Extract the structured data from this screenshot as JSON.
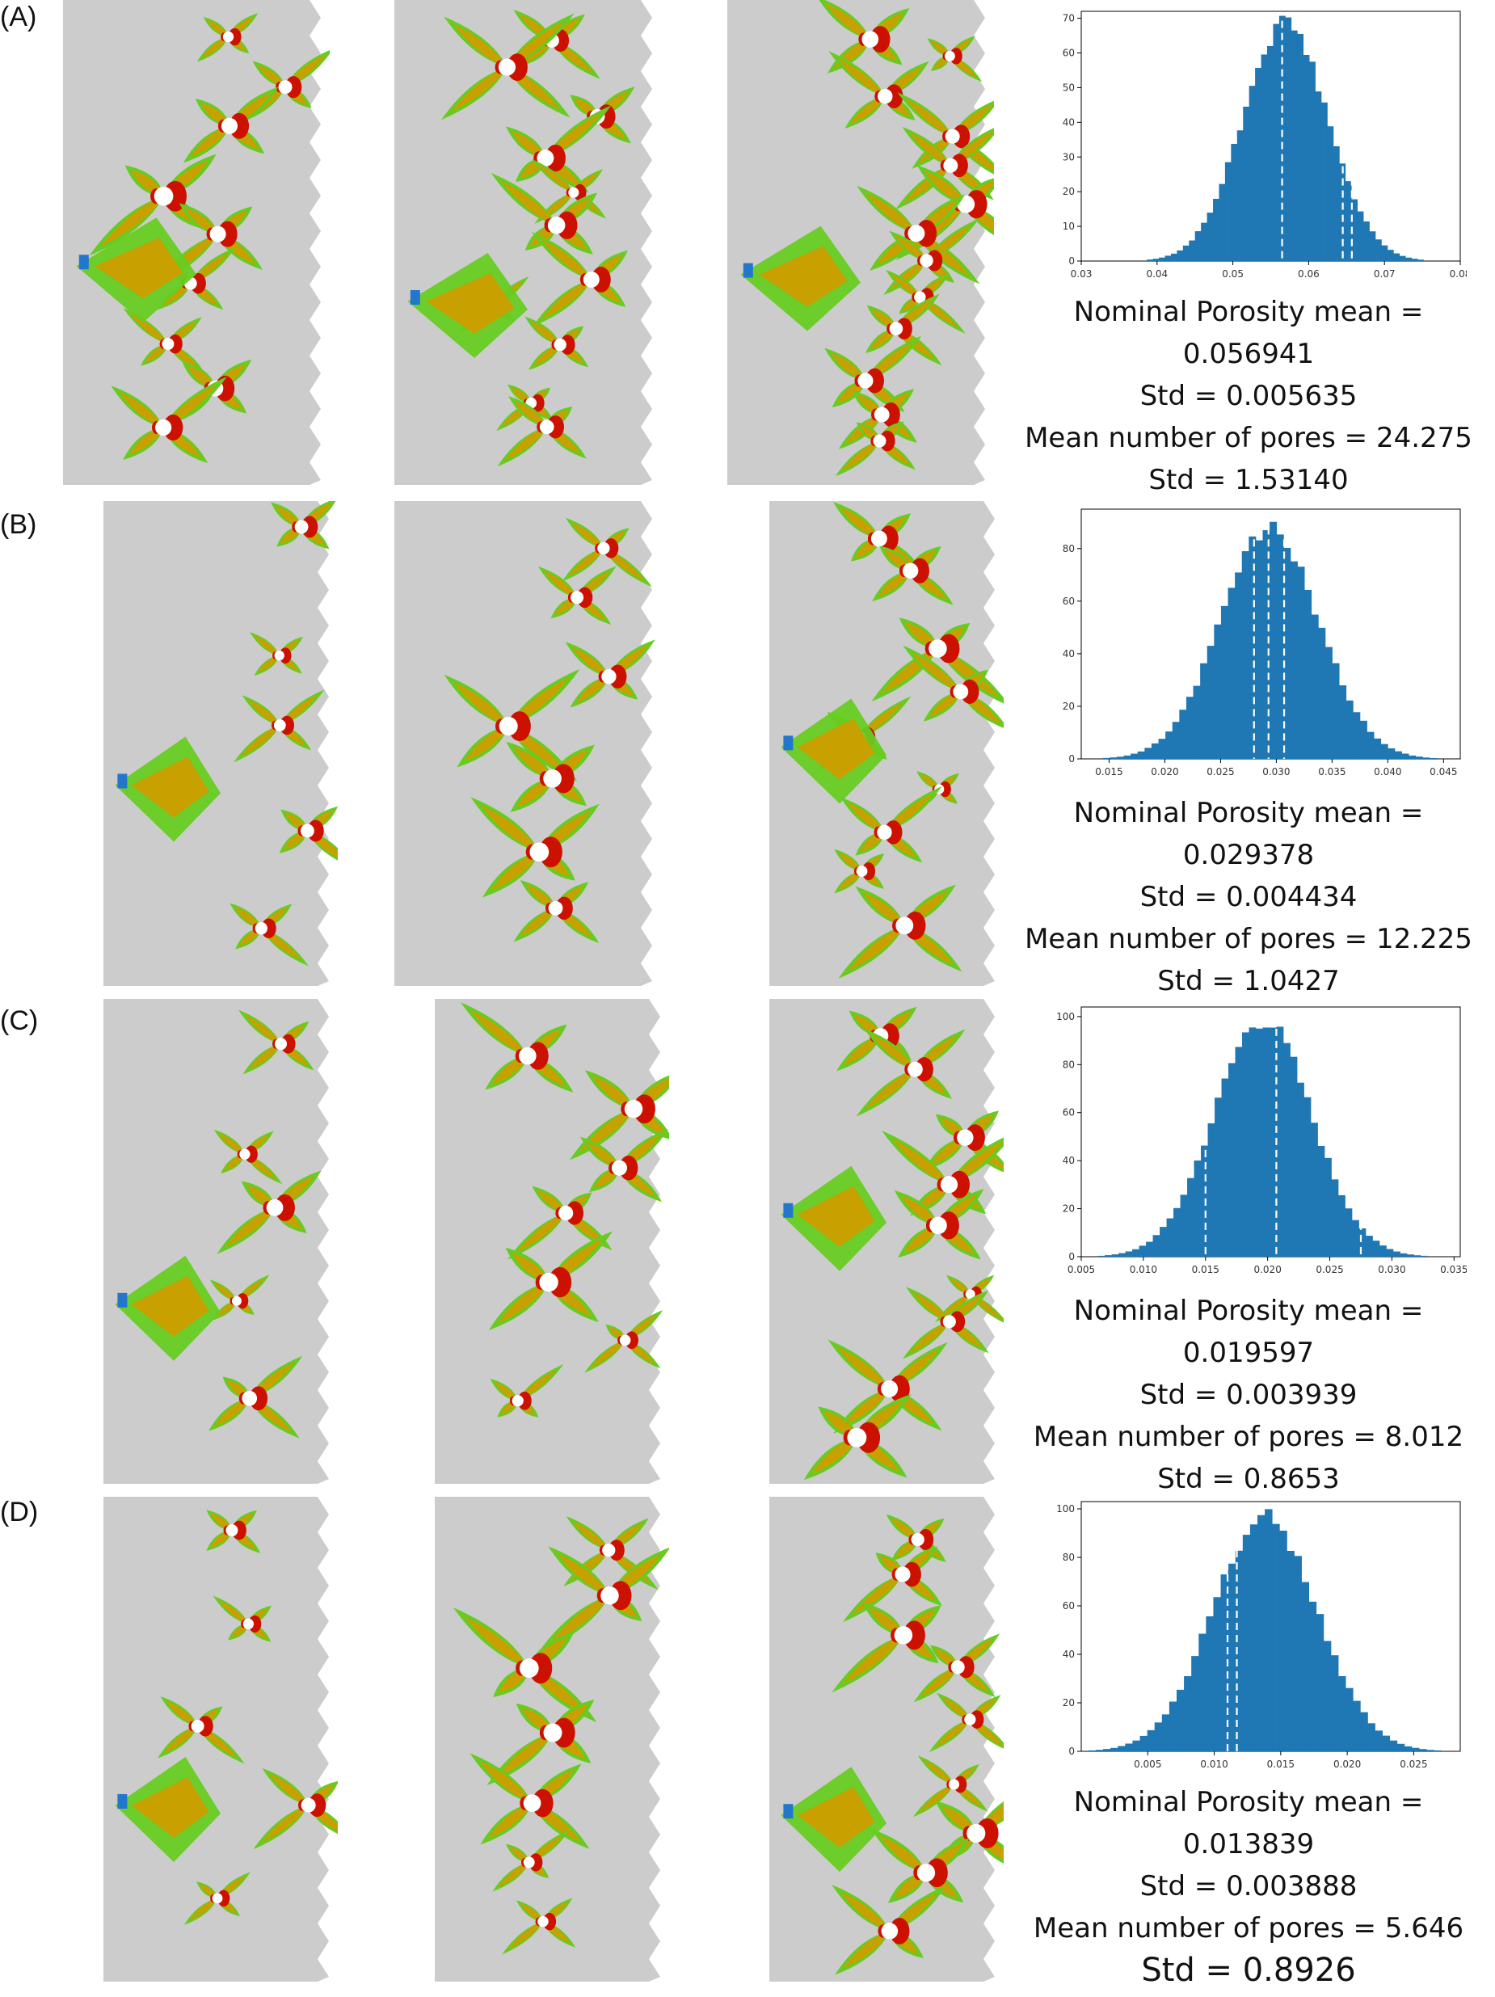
{
  "panels": [
    {
      "label": "(A)",
      "stats": [
        "Nominal Porosity mean =",
        "0.056941",
        "Std = 0.005635",
        "Mean number of pores = 24.275",
        "Std = 1.53140"
      ],
      "chart_data": {
        "type": "bar",
        "x_center": 0.0569,
        "x_std": 0.0056,
        "y_peak": 70,
        "xlim": [
          0.03,
          0.08
        ],
        "ylim": [
          0,
          72
        ],
        "xticks": [
          "0.03",
          "0.04",
          "0.05",
          "0.06",
          "0.07",
          "0.08"
        ],
        "yticks": [
          "0",
          "10",
          "20",
          "30",
          "40",
          "50",
          "60",
          "70"
        ],
        "dashed_lines": [
          0.0565,
          0.0645,
          0.0657
        ],
        "bar_color": "#1f77b4"
      }
    },
    {
      "label": "(B)",
      "stats": [
        "Nominal Porosity mean =",
        "0.029378",
        "Std = 0.004434",
        "Mean number of pores = 12.225",
        "Std = 1.0427"
      ],
      "chart_data": {
        "type": "bar",
        "x_center": 0.0294,
        "x_std": 0.0044,
        "y_peak": 89,
        "xlim": [
          0.0125,
          0.0465
        ],
        "ylim": [
          0,
          95
        ],
        "xticks": [
          "0.015",
          "0.020",
          "0.025",
          "0.030",
          "0.035",
          "0.040",
          "0.045"
        ],
        "yticks": [
          "0",
          "20",
          "40",
          "60",
          "80"
        ],
        "dashed_lines": [
          0.028,
          0.0293,
          0.0307
        ],
        "bar_color": "#1f77b4"
      }
    },
    {
      "label": "(C)",
      "stats": [
        "Nominal Porosity mean =",
        "0.019597",
        "Std = 0.003939",
        "Mean number of pores = 8.012",
        "Std = 0.8653"
      ],
      "chart_data": {
        "type": "bar",
        "x_center": 0.0196,
        "x_std": 0.0039,
        "y_peak": 101,
        "xlim": [
          0.005,
          0.0355
        ],
        "ylim": [
          0,
          104
        ],
        "xticks": [
          "0.005",
          "0.010",
          "0.015",
          "0.020",
          "0.025",
          "0.030",
          "0.035"
        ],
        "yticks": [
          "0",
          "20",
          "40",
          "60",
          "80",
          "100"
        ],
        "dashed_lines": [
          0.015,
          0.0207,
          0.0275
        ],
        "bar_color": "#1f77b4"
      }
    },
    {
      "label": "(D)",
      "stats": [
        "Nominal Porosity mean =",
        "0.013839",
        "Std = 0.003888",
        "Mean number of pores = 5.646",
        "Std = 0.8926"
      ],
      "chart_data": {
        "type": "bar",
        "x_center": 0.0138,
        "x_std": 0.0039,
        "y_peak": 99,
        "xlim": [
          0.0,
          0.0285
        ],
        "ylim": [
          0,
          103
        ],
        "xticks": [
          "0.005",
          "0.010",
          "0.015",
          "0.020",
          "0.025"
        ],
        "yticks": [
          "0",
          "20",
          "40",
          "60",
          "80",
          "100"
        ],
        "dashed_lines": [
          0.011,
          0.0117
        ],
        "bar_color": "#1f77b4"
      }
    }
  ],
  "colors": {
    "matrix": "#cccccc",
    "low": "#66cc22",
    "mid": "#c8a000",
    "high": "#cc1100",
    "cold": "#2277cc",
    "pore": "#ffffff"
  }
}
